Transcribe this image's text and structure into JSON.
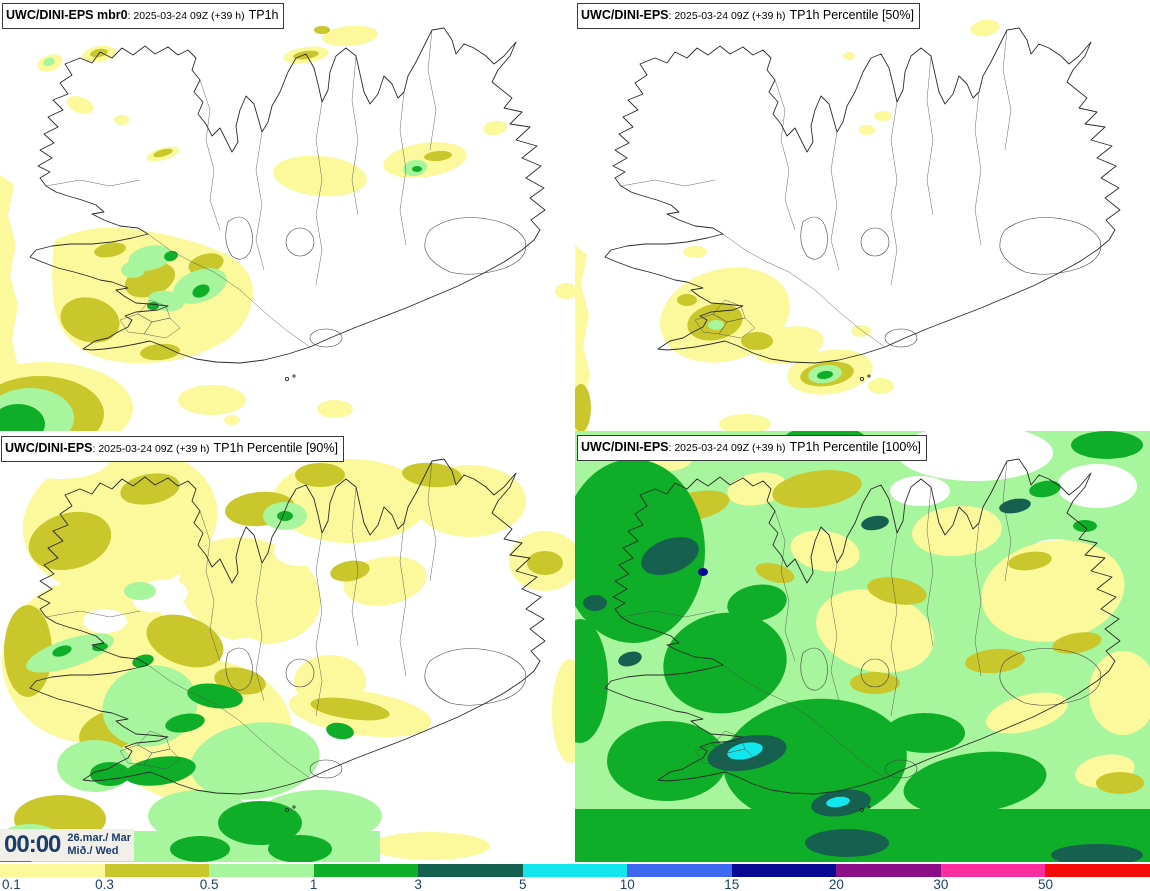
{
  "panels": [
    {
      "model": "UWC/DINI-EPS mbr0",
      "run": ": 2025-03-24 09Z (+39 h)",
      "param": "TP1h"
    },
    {
      "model": "UWC/DINI-EPS",
      "run": ": 2025-03-24 09Z (+39 h)",
      "param": "TP1h Percentile [50%]"
    },
    {
      "model": "UWC/DINI-EPS",
      "run": ": 2025-03-24 09Z (+39 h)",
      "param": "TP1h Percentile [90%]"
    },
    {
      "model": "UWC/DINI-EPS",
      "run": ": 2025-03-24 09Z (+39 h)",
      "param": "TP1h Percentile [100%]"
    }
  ],
  "clock": {
    "time": "00:00",
    "date": "26.mar./ Mar",
    "weekday": "Mið./ Wed"
  },
  "colorbar": {
    "labels": [
      "0.1",
      "0.3",
      "0.5",
      "1",
      "3",
      "5",
      "10",
      "15",
      "20",
      "30",
      "50"
    ],
    "colors": [
      "#fbf99b",
      "#c9c72b",
      "#a7f59c",
      "#0fae28",
      "#16604f",
      "#13e7ee",
      "#3e68ef",
      "#0a0a90",
      "#8b0e87",
      "#fd2f9f",
      "#f60b0b"
    ],
    "label_color": "#1d4076",
    "clock_bg": "#f0efe9",
    "clock_text": "#1c3c6e"
  }
}
